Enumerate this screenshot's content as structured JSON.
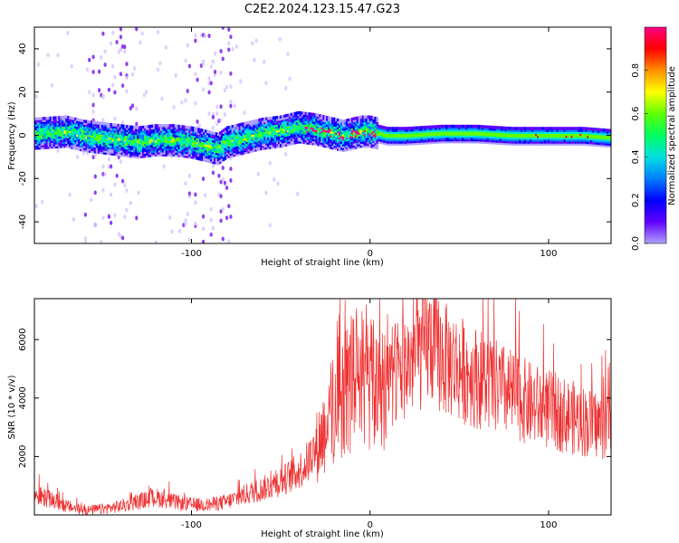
{
  "title": "C2E2.2024.123.15.47.G23",
  "chart_data": [
    {
      "type": "heatmap",
      "xlabel": "Height of straight line (km)",
      "ylabel": "Frequency (Hz)",
      "xlim": [
        -188,
        135
      ],
      "ylim": [
        -50,
        50
      ],
      "xticks": [
        -100,
        0,
        100
      ],
      "yticks": [
        -40,
        -20,
        0,
        20,
        40
      ],
      "grid": false,
      "colorbar": {
        "label": "Normalized spectral amplitude",
        "range": [
          0,
          1
        ],
        "ticks": [
          "0.0",
          "0.2",
          "0.4",
          "0.6",
          "0.8"
        ],
        "colormap": [
          "#b0a0ff",
          "#6000ff",
          "#0000ff",
          "#0080ff",
          "#00e0e0",
          "#00ff60",
          "#60ff00",
          "#ffff00",
          "#ff9000",
          "#ff0000",
          "#ff0080"
        ]
      },
      "ridge": {
        "description": "dominant spectral ridge centered near 0 Hz",
        "x": [
          -188,
          -170,
          -160,
          -150,
          -140,
          -130,
          -120,
          -110,
          -100,
          -90,
          -85,
          -80,
          -75,
          -70,
          -60,
          -50,
          -40,
          -30,
          -20,
          -15,
          -10,
          -5,
          0,
          10,
          20,
          40,
          60,
          80,
          100,
          120,
          135
        ],
        "y": [
          1,
          2,
          0,
          -1,
          -2,
          -3,
          -2,
          -2,
          -3,
          -5,
          -6,
          -3,
          -2,
          -1,
          1,
          2,
          4,
          3,
          1,
          0,
          1,
          2,
          2,
          0,
          0,
          1,
          1,
          0,
          0,
          0,
          -1
        ]
      }
    },
    {
      "type": "line",
      "xlabel": "Height of straight line (km)",
      "ylabel": "SNR (10 * v/v)",
      "xlim": [
        -188,
        135
      ],
      "ylim": [
        0,
        7400
      ],
      "xticks": [
        -100,
        0,
        100
      ],
      "yticks": [
        2000,
        4000,
        6000
      ],
      "grid": false,
      "series": [
        {
          "color": "#ee3030",
          "x": [
            -188,
            -180,
            -170,
            -160,
            -150,
            -140,
            -130,
            -120,
            -110,
            -100,
            -90,
            -80,
            -70,
            -60,
            -50,
            -40,
            -35,
            -30,
            -25,
            -20,
            -15,
            -10,
            -5,
            0,
            10,
            20,
            30,
            35,
            40,
            50,
            60,
            70,
            80,
            90,
            100,
            110,
            120,
            130,
            135
          ],
          "y": [
            700,
            550,
            300,
            150,
            200,
            300,
            450,
            600,
            450,
            350,
            350,
            450,
            700,
            900,
            1150,
            1500,
            1800,
            2300,
            3000,
            3700,
            4200,
            4500,
            4700,
            4300,
            4700,
            5100,
            5700,
            5900,
            5400,
            5000,
            4700,
            4400,
            4100,
            3800,
            3600,
            3400,
            3200,
            3050,
            3150
          ]
        }
      ]
    }
  ]
}
